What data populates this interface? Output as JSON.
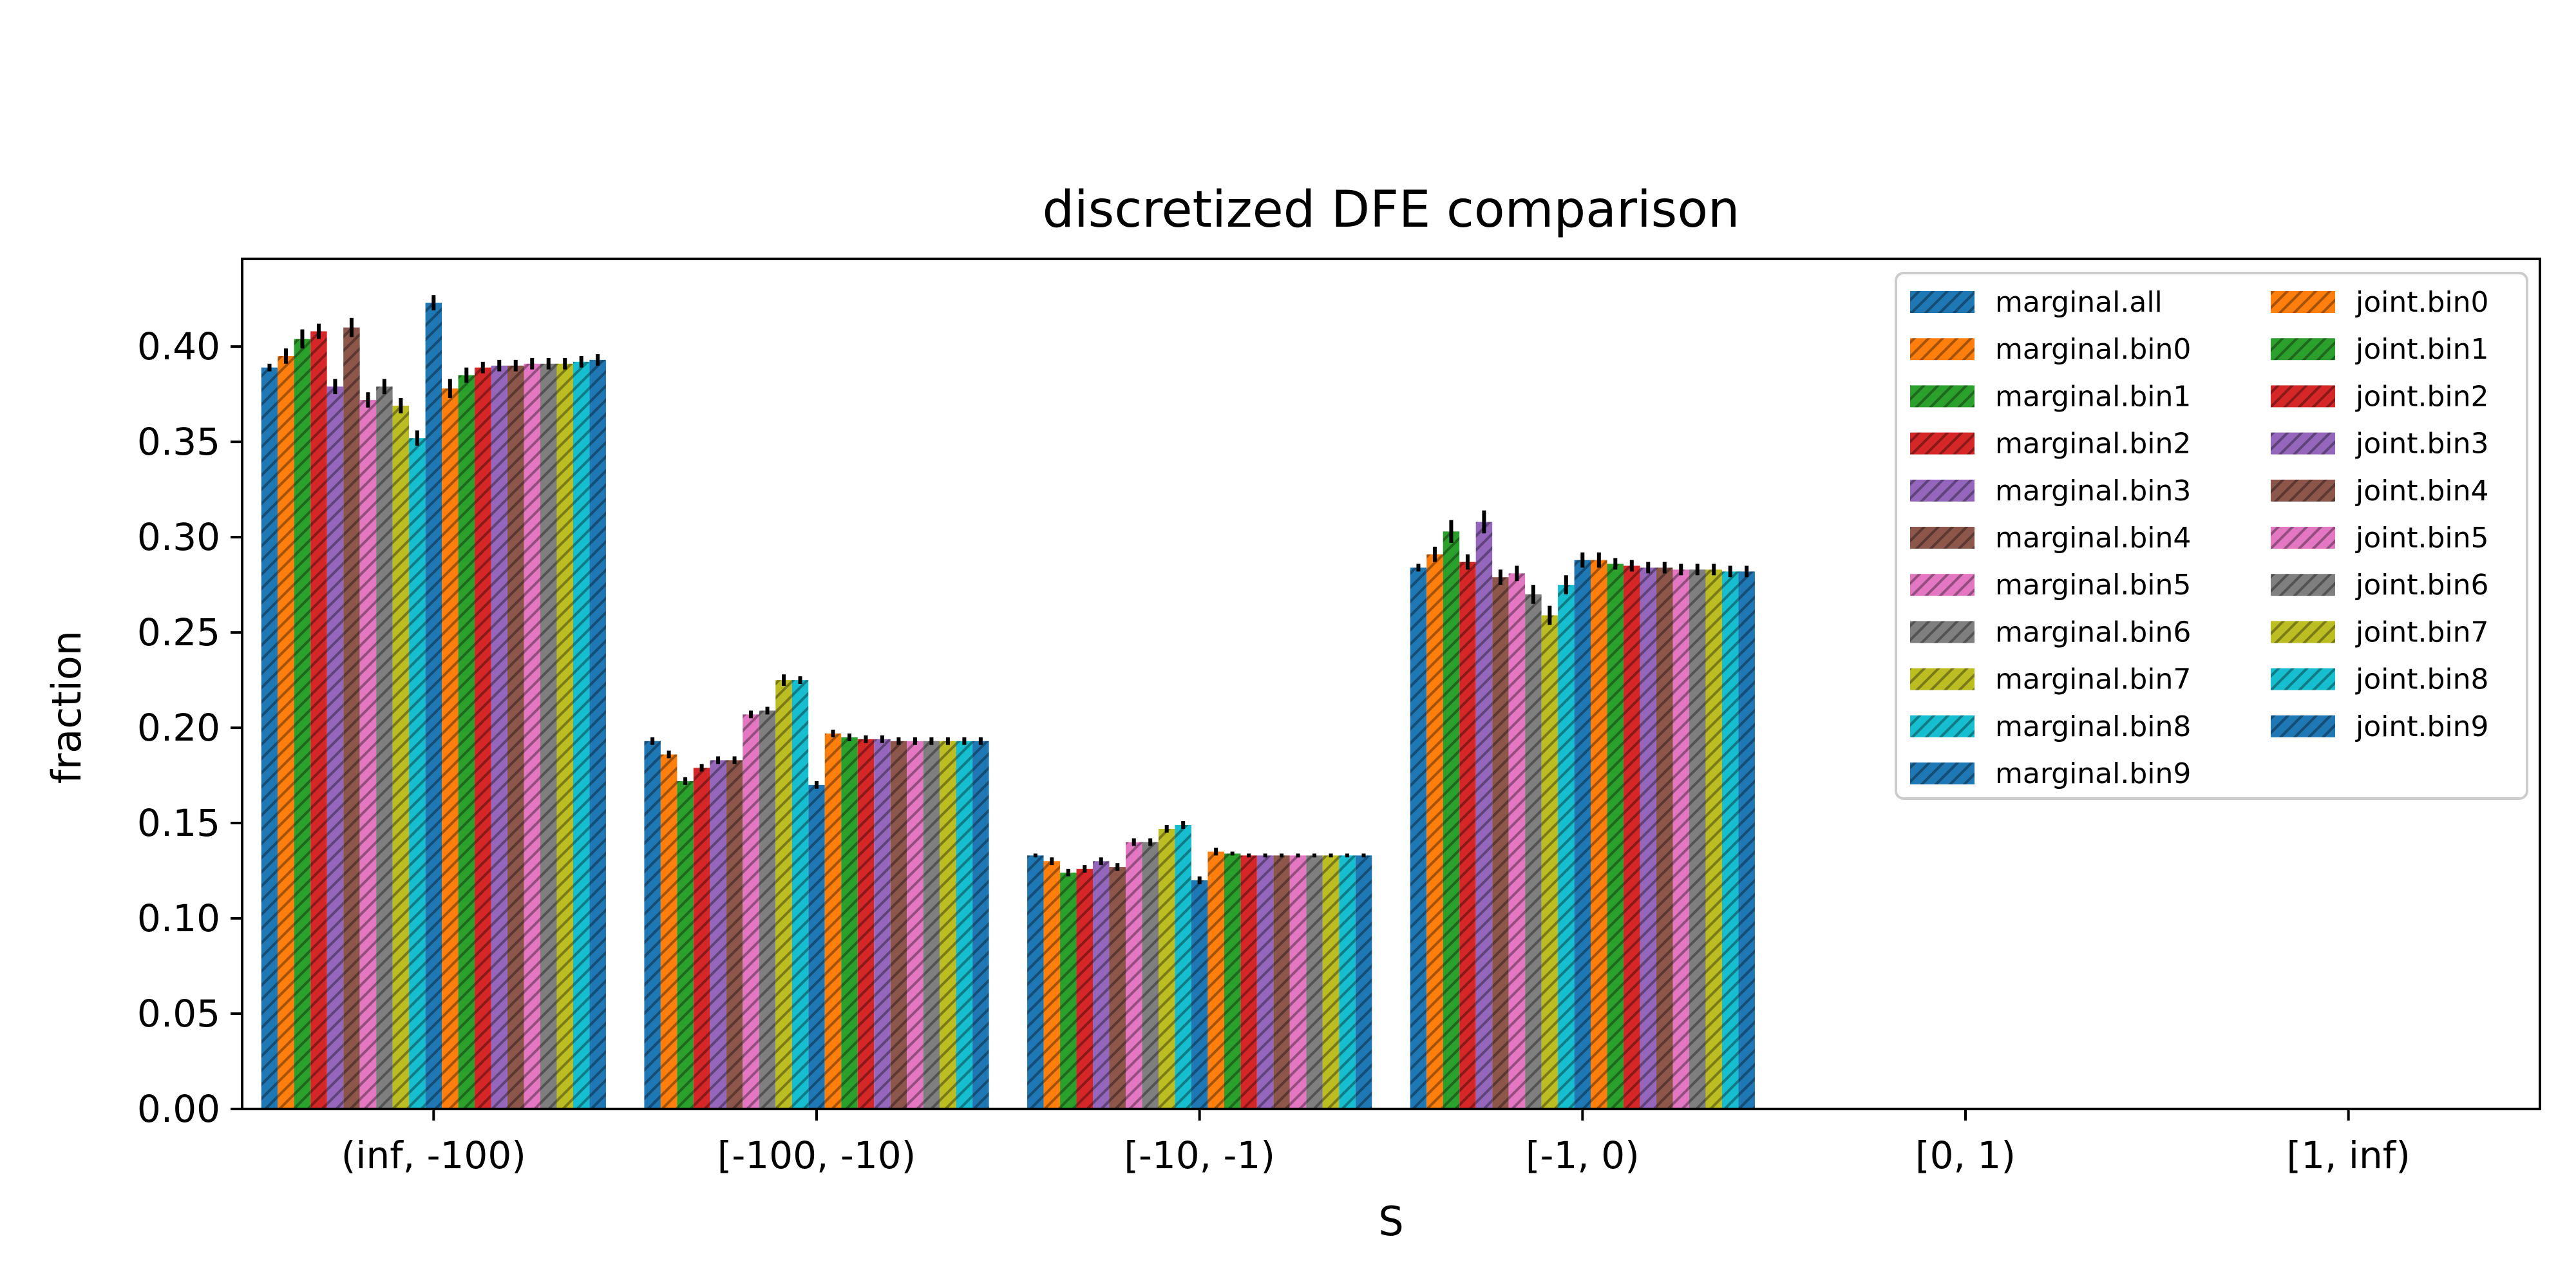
{
  "chart_data": {
    "type": "bar",
    "title": "discretized DFE comparison",
    "xlabel": "S",
    "ylabel": "fraction",
    "ylim": [
      0,
      0.446
    ],
    "yticks": [
      0.0,
      0.05,
      0.1,
      0.15,
      0.2,
      0.25,
      0.3,
      0.35,
      0.4
    ],
    "ytick_labels": [
      "0.00",
      "0.05",
      "0.10",
      "0.15",
      "0.20",
      "0.25",
      "0.30",
      "0.35",
      "0.40"
    ],
    "categories": [
      "(inf, -100)",
      "[-100, -10)",
      "[-10, -1)",
      "[-1, 0)",
      "[0, 1)",
      "[1, inf)"
    ],
    "grid": false,
    "legend_position": "top-right",
    "legend_columns": 2,
    "hatch": "diagonal",
    "error_bars": true,
    "series": [
      {
        "name": "marginal.all",
        "color": "#1f77b4",
        "values": [
          0.389,
          0.193,
          0.133,
          0.284,
          0,
          0
        ],
        "errors": [
          0.002,
          0.002,
          0.001,
          0.002,
          0,
          0
        ]
      },
      {
        "name": "marginal.bin0",
        "color": "#ff7f0e",
        "values": [
          0.395,
          0.186,
          0.13,
          0.291,
          0,
          0
        ],
        "errors": [
          0.004,
          0.002,
          0.002,
          0.004,
          0,
          0
        ]
      },
      {
        "name": "marginal.bin1",
        "color": "#2ca02c",
        "values": [
          0.404,
          0.172,
          0.124,
          0.303,
          0,
          0
        ],
        "errors": [
          0.005,
          0.002,
          0.002,
          0.006,
          0,
          0
        ]
      },
      {
        "name": "marginal.bin2",
        "color": "#d62728",
        "values": [
          0.408,
          0.179,
          0.126,
          0.287,
          0,
          0
        ],
        "errors": [
          0.004,
          0.002,
          0.002,
          0.004,
          0,
          0
        ]
      },
      {
        "name": "marginal.bin3",
        "color": "#9467bd",
        "values": [
          0.379,
          0.183,
          0.13,
          0.308,
          0,
          0
        ],
        "errors": [
          0.004,
          0.002,
          0.002,
          0.006,
          0,
          0
        ]
      },
      {
        "name": "marginal.bin4",
        "color": "#8c564b",
        "values": [
          0.41,
          0.183,
          0.127,
          0.279,
          0,
          0
        ],
        "errors": [
          0.005,
          0.002,
          0.002,
          0.004,
          0,
          0
        ]
      },
      {
        "name": "marginal.bin5",
        "color": "#e377c2",
        "values": [
          0.372,
          0.207,
          0.14,
          0.281,
          0,
          0
        ],
        "errors": [
          0.004,
          0.002,
          0.002,
          0.004,
          0,
          0
        ]
      },
      {
        "name": "marginal.bin6",
        "color": "#7f7f7f",
        "values": [
          0.379,
          0.209,
          0.14,
          0.27,
          0,
          0
        ],
        "errors": [
          0.004,
          0.002,
          0.002,
          0.005,
          0,
          0
        ]
      },
      {
        "name": "marginal.bin7",
        "color": "#bcbd22",
        "values": [
          0.369,
          0.225,
          0.147,
          0.259,
          0,
          0
        ],
        "errors": [
          0.004,
          0.003,
          0.002,
          0.005,
          0,
          0
        ]
      },
      {
        "name": "marginal.bin8",
        "color": "#17becf",
        "values": [
          0.352,
          0.225,
          0.149,
          0.275,
          0,
          0
        ],
        "errors": [
          0.004,
          0.002,
          0.002,
          0.005,
          0,
          0
        ]
      },
      {
        "name": "marginal.bin9",
        "color": "#1f77b4",
        "values": [
          0.423,
          0.17,
          0.12,
          0.288,
          0,
          0
        ],
        "errors": [
          0.004,
          0.002,
          0.002,
          0.004,
          0,
          0
        ]
      },
      {
        "name": "joint.bin0",
        "color": "#ff7f0e",
        "values": [
          0.378,
          0.197,
          0.135,
          0.288,
          0,
          0
        ],
        "errors": [
          0.005,
          0.002,
          0.002,
          0.004,
          0,
          0
        ]
      },
      {
        "name": "joint.bin1",
        "color": "#2ca02c",
        "values": [
          0.385,
          0.195,
          0.134,
          0.286,
          0,
          0
        ],
        "errors": [
          0.004,
          0.002,
          0.001,
          0.003,
          0,
          0
        ]
      },
      {
        "name": "joint.bin2",
        "color": "#d62728",
        "values": [
          0.389,
          0.194,
          0.133,
          0.285,
          0,
          0
        ],
        "errors": [
          0.003,
          0.002,
          0.001,
          0.003,
          0,
          0
        ]
      },
      {
        "name": "joint.bin3",
        "color": "#9467bd",
        "values": [
          0.39,
          0.194,
          0.133,
          0.284,
          0,
          0
        ],
        "errors": [
          0.003,
          0.002,
          0.001,
          0.003,
          0,
          0
        ]
      },
      {
        "name": "joint.bin4",
        "color": "#8c564b",
        "values": [
          0.39,
          0.193,
          0.133,
          0.284,
          0,
          0
        ],
        "errors": [
          0.003,
          0.002,
          0.001,
          0.003,
          0,
          0
        ]
      },
      {
        "name": "joint.bin5",
        "color": "#e377c2",
        "values": [
          0.391,
          0.193,
          0.133,
          0.283,
          0,
          0
        ],
        "errors": [
          0.003,
          0.002,
          0.001,
          0.003,
          0,
          0
        ]
      },
      {
        "name": "joint.bin6",
        "color": "#7f7f7f",
        "values": [
          0.391,
          0.193,
          0.133,
          0.283,
          0,
          0
        ],
        "errors": [
          0.003,
          0.002,
          0.001,
          0.003,
          0,
          0
        ]
      },
      {
        "name": "joint.bin7",
        "color": "#bcbd22",
        "values": [
          0.391,
          0.193,
          0.133,
          0.283,
          0,
          0
        ],
        "errors": [
          0.003,
          0.002,
          0.001,
          0.003,
          0,
          0
        ]
      },
      {
        "name": "joint.bin8",
        "color": "#17becf",
        "values": [
          0.392,
          0.193,
          0.133,
          0.282,
          0,
          0
        ],
        "errors": [
          0.003,
          0.002,
          0.001,
          0.003,
          0,
          0
        ]
      },
      {
        "name": "joint.bin9",
        "color": "#1f77b4",
        "values": [
          0.393,
          0.193,
          0.133,
          0.282,
          0,
          0
        ],
        "errors": [
          0.003,
          0.002,
          0.001,
          0.003,
          0,
          0
        ]
      }
    ]
  }
}
